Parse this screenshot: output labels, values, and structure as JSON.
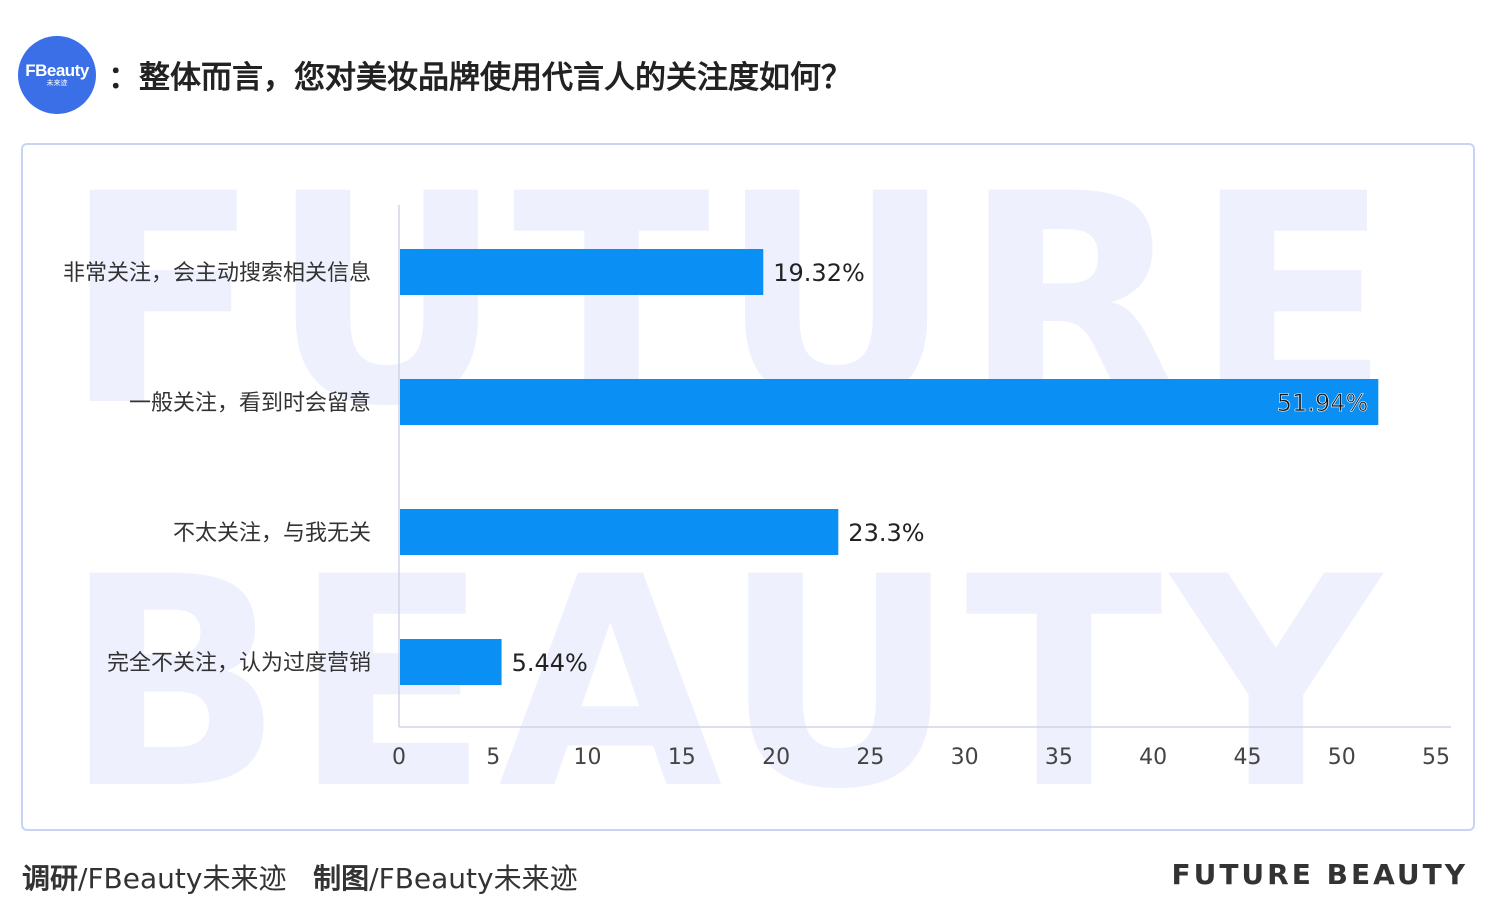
{
  "header": {
    "logo_text": "FBeauty",
    "logo_subtext": "未来迹",
    "title": "：整体而言，您对美妆品牌使用代言人的关注度如何？"
  },
  "watermark": {
    "line1": "FUTURE",
    "line2": "BEAUTY"
  },
  "chart_data": {
    "type": "bar",
    "orientation": "horizontal",
    "categories": [
      "非常关注，会主动搜索相关信息",
      "一般关注，看到时会留意",
      "不太关注，与我无关",
      "完全不关注，认为过度营销"
    ],
    "values": [
      19.32,
      51.94,
      23.3,
      5.44
    ],
    "value_labels": [
      "19.32%",
      "51.94%",
      "23.3%",
      "5.44%"
    ],
    "xlim": [
      0,
      55
    ],
    "x_ticks": [
      0,
      5,
      10,
      15,
      20,
      25,
      30,
      35,
      40,
      45,
      50,
      55
    ],
    "title": "",
    "xlabel": "",
    "ylabel": "",
    "grid": false,
    "bar_color": "#0a8ff5"
  },
  "footer": {
    "research_label": "调研",
    "research_value": "/FBeauty未来迹",
    "chart_label": "制图",
    "chart_value": "/FBeauty未来迹",
    "brand": "FUTURE BEAUTY"
  }
}
